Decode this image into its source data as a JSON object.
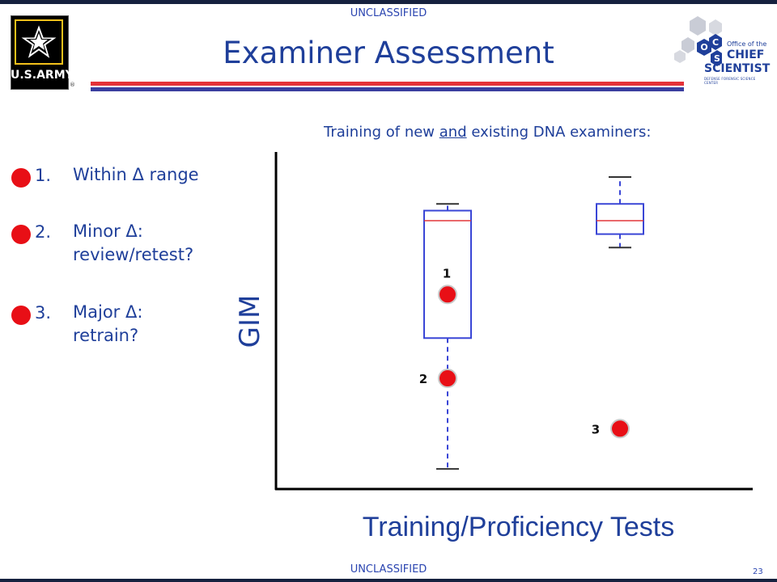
{
  "header": {
    "classification_top": "UNCLASSIFIED",
    "title": "Examiner Assessment",
    "army_logo_text": "U.S.ARMY",
    "army_logo_reg": "®",
    "ocs_logo": {
      "line1": "Office of the",
      "line2": "CHIEF",
      "line3": "SCIENTIST",
      "line4": "DEFENSE FORENSIC SCIENCE CENTER",
      "letters": [
        "C",
        "O",
        "S"
      ]
    }
  },
  "list": [
    {
      "num": "1.",
      "line1": "Within Δ range",
      "line2": ""
    },
    {
      "num": "2.",
      "line1": "Minor Δ:",
      "line2": "review/retest?"
    },
    {
      "num": "3.",
      "line1": "Major Δ:",
      "line2": "retrain?"
    }
  ],
  "subtitle": {
    "before": "Training of new ",
    "underlined": "and",
    "after": " existing DNA examiners:"
  },
  "footer": {
    "classification_bottom": "UNCLASSIFIED",
    "page": "23"
  },
  "colors": {
    "accent_blue": "#1f3f9a",
    "marker_red": "#e80f16",
    "box_blue": "#3a46d6",
    "median_red": "#e2363a"
  },
  "chart_data": {
    "type": "box",
    "xlabel": "Training/Proficiency Tests",
    "ylabel": "GIM",
    "ylim": [
      0,
      100
    ],
    "boxes": [
      {
        "whisker_low": 6,
        "q1": 45,
        "median": 80,
        "q3": 83,
        "whisker_high": 85
      },
      {
        "whisker_low": 72,
        "q1": 76,
        "median": 80,
        "q3": 85,
        "whisker_high": 93
      }
    ],
    "points": [
      {
        "label": "1",
        "box": 0,
        "y": 58
      },
      {
        "label": "2",
        "box": 0,
        "y": 33
      },
      {
        "label": "3",
        "box": 1,
        "y": 18
      }
    ]
  }
}
